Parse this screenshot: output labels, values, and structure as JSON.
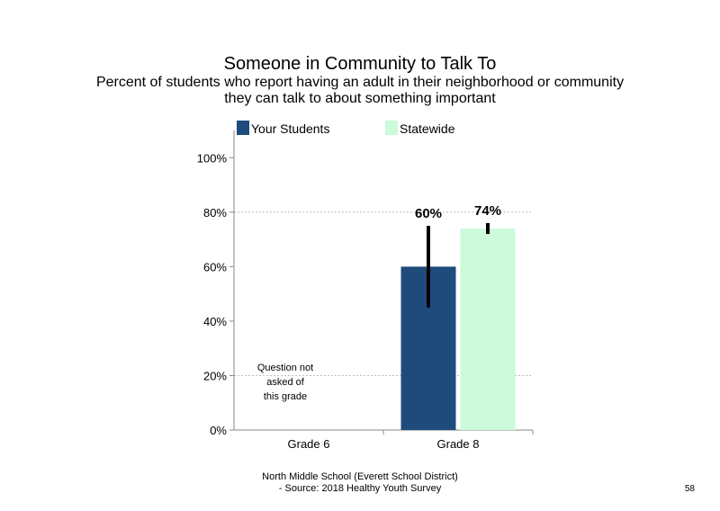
{
  "header": {
    "title": "Someone in Community to Talk To",
    "subtitle_line1": "Percent of students who report having an adult in their neighborhood or community",
    "subtitle_line2": "they can talk to about something important"
  },
  "footer": {
    "line1": "North Middle School (Everett School District)",
    "line2": "- Source: 2018 Healthy Youth Survey",
    "page_number": "58"
  },
  "chart_data": {
    "type": "bar",
    "categories": [
      "Grade 6",
      "Grade 8"
    ],
    "series": [
      {
        "name": "Your Students",
        "color": "#1f4a7c",
        "values": [
          null,
          60
        ],
        "error": [
          null,
          [
            45,
            75
          ]
        ],
        "labels": [
          "",
          "60%"
        ]
      },
      {
        "name": "Statewide",
        "color": "#ccfadb",
        "values": [
          null,
          74
        ],
        "error": [
          null,
          [
            72,
            76
          ]
        ],
        "labels": [
          "",
          "74%"
        ]
      }
    ],
    "ylim": [
      0,
      110
    ],
    "yticks": [
      0,
      20,
      40,
      60,
      80,
      100
    ],
    "ytick_labels": [
      "0%",
      "20%",
      "40%",
      "60%",
      "80%",
      "100%"
    ],
    "gridlines": [
      20,
      80
    ],
    "legend_position": "top",
    "annotations": [
      {
        "category": "Grade 6",
        "lines": [
          "Question not",
          "asked of",
          "this grade"
        ]
      }
    ]
  }
}
